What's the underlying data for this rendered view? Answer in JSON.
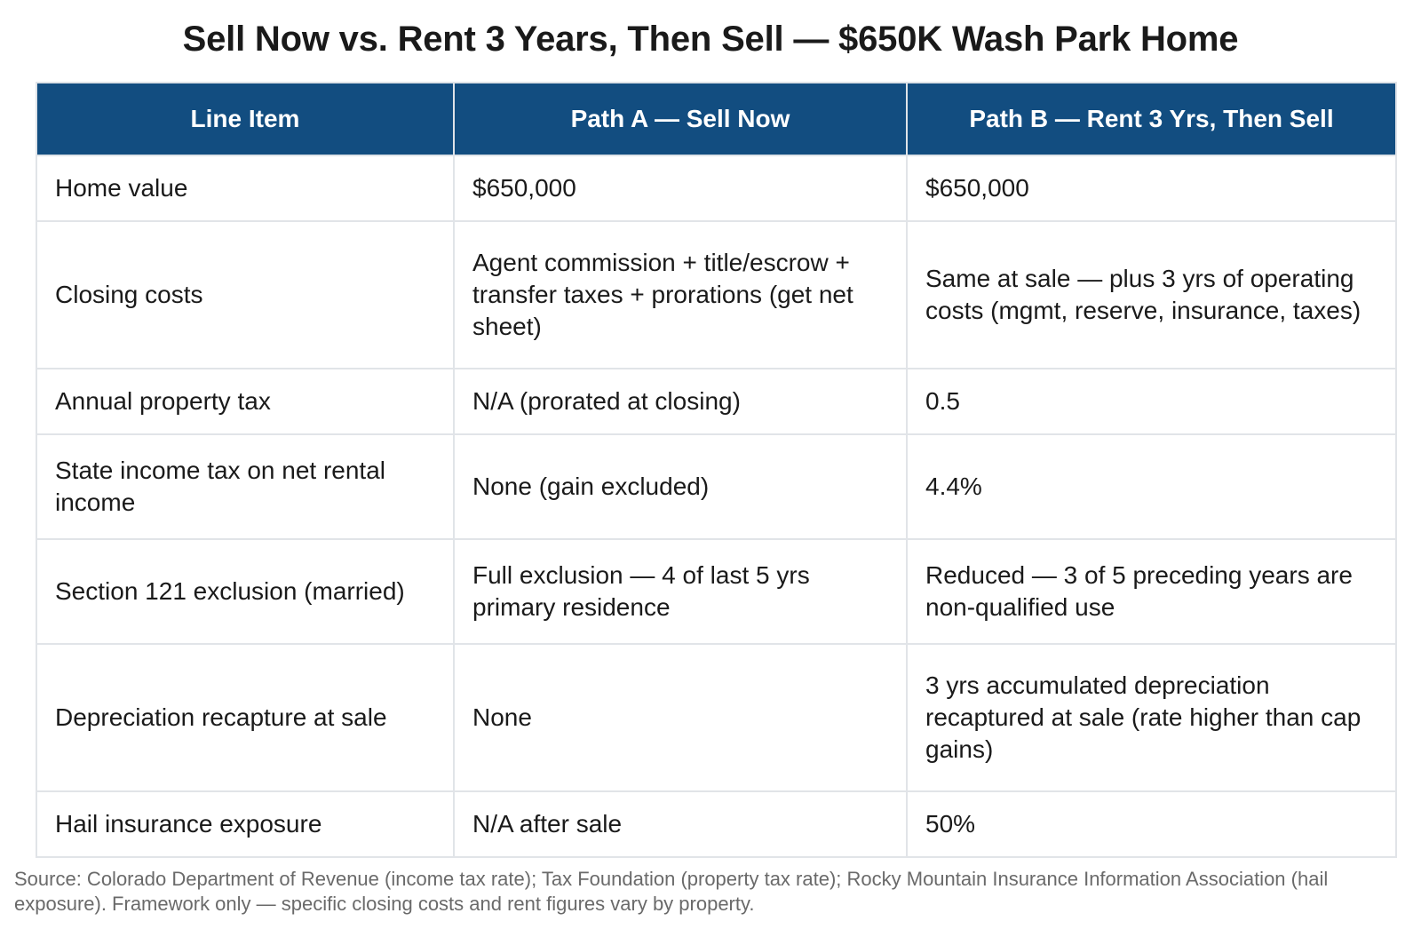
{
  "title": "Sell Now vs. Rent 3 Years, Then Sell — $650K Wash Park Home",
  "table": {
    "headers": [
      "Line Item",
      "Path A — Sell Now",
      "Path B — Rent 3 Yrs, Then Sell"
    ],
    "rows": [
      [
        "Home value",
        "$650,000",
        "$650,000"
      ],
      [
        "Closing costs",
        "Agent commission + title/escrow + transfer taxes + prorations (get net sheet)",
        "Same at sale — plus 3 yrs of operating costs (mgmt, reserve, insurance, taxes)"
      ],
      [
        "Annual property tax",
        "N/A (prorated at closing)",
        "0.5"
      ],
      [
        "State income tax on net rental income",
        "None (gain excluded)",
        "4.4%"
      ],
      [
        "Section 121 exclusion (married)",
        "Full exclusion — 4 of last 5 yrs primary residence",
        "Reduced — 3 of 5 preceding years are non-qualified use"
      ],
      [
        "Depreciation recapture at sale",
        "None",
        "3 yrs accumulated depreciation recaptured at sale (rate higher than cap gains)"
      ],
      [
        "Hail insurance exposure",
        "N/A after sale",
        "50%"
      ]
    ]
  },
  "source": "Source: Colorado Department of Revenue (income tax rate); Tax Foundation (property tax rate); Rocky Mountain Insurance Information Association (hail exposure). Framework only — specific closing costs and rent figures vary by property.",
  "colors": {
    "header_bg": "#124d80",
    "header_text": "#ffffff",
    "border": "#e1e4e8",
    "source_text": "#6a6a6a"
  }
}
